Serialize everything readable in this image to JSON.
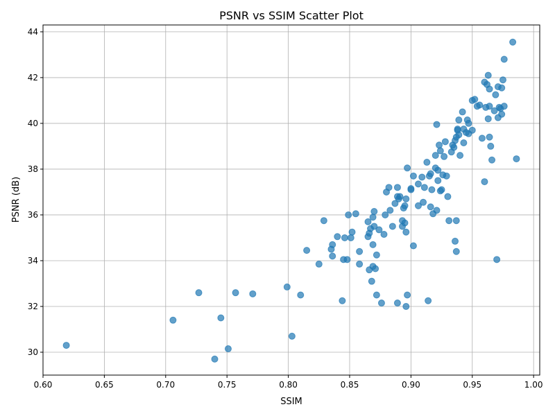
{
  "chart_data": {
    "type": "scatter",
    "title": "PSNR vs SSIM Scatter Plot",
    "xlabel": "SSIM",
    "ylabel": "PSNR (dB)",
    "xlim": [
      0.6,
      1.005
    ],
    "ylim": [
      29.0,
      44.3
    ],
    "xticks": [
      "0.60",
      "0.65",
      "0.70",
      "0.75",
      "0.80",
      "0.85",
      "0.90",
      "0.95",
      "1.00"
    ],
    "yticks": [
      "30",
      "32",
      "34",
      "36",
      "38",
      "40",
      "42",
      "44"
    ],
    "grid": true,
    "marker_color": "#1f77b4",
    "marker_alpha": 0.7,
    "points": [
      [
        0.619,
        30.3
      ],
      [
        0.706,
        31.4
      ],
      [
        0.727,
        32.6
      ],
      [
        0.74,
        29.7
      ],
      [
        0.745,
        31.5
      ],
      [
        0.751,
        30.15
      ],
      [
        0.757,
        32.6
      ],
      [
        0.771,
        32.55
      ],
      [
        0.799,
        32.85
      ],
      [
        0.803,
        30.7
      ],
      [
        0.81,
        32.5
      ],
      [
        0.815,
        34.45
      ],
      [
        0.825,
        33.85
      ],
      [
        0.829,
        35.75
      ],
      [
        0.835,
        34.5
      ],
      [
        0.836,
        34.7
      ],
      [
        0.836,
        34.2
      ],
      [
        0.84,
        35.05
      ],
      [
        0.844,
        32.25
      ],
      [
        0.845,
        34.05
      ],
      [
        0.846,
        35.0
      ],
      [
        0.848,
        34.05
      ],
      [
        0.849,
        36.0
      ],
      [
        0.851,
        35.0
      ],
      [
        0.852,
        35.25
      ],
      [
        0.855,
        36.05
      ],
      [
        0.858,
        33.85
      ],
      [
        0.858,
        34.4
      ],
      [
        0.865,
        35.05
      ],
      [
        0.865,
        35.7
      ],
      [
        0.866,
        35.2
      ],
      [
        0.867,
        35.4
      ],
      [
        0.866,
        33.6
      ],
      [
        0.868,
        33.1
      ],
      [
        0.869,
        34.7
      ],
      [
        0.869,
        35.9
      ],
      [
        0.869,
        33.75
      ],
      [
        0.87,
        36.15
      ],
      [
        0.87,
        35.5
      ],
      [
        0.871,
        33.65
      ],
      [
        0.872,
        34.25
      ],
      [
        0.872,
        32.5
      ],
      [
        0.874,
        35.35
      ],
      [
        0.876,
        32.15
      ],
      [
        0.878,
        35.15
      ],
      [
        0.879,
        36.0
      ],
      [
        0.88,
        37.0
      ],
      [
        0.882,
        37.2
      ],
      [
        0.883,
        36.2
      ],
      [
        0.885,
        35.5
      ],
      [
        0.887,
        36.5
      ],
      [
        0.889,
        37.2
      ],
      [
        0.889,
        36.8
      ],
      [
        0.889,
        32.15
      ],
      [
        0.89,
        36.7
      ],
      [
        0.891,
        36.8
      ],
      [
        0.893,
        35.75
      ],
      [
        0.893,
        35.5
      ],
      [
        0.894,
        36.3
      ],
      [
        0.895,
        35.65
      ],
      [
        0.895,
        36.4
      ],
      [
        0.896,
        36.7
      ],
      [
        0.896,
        35.25
      ],
      [
        0.896,
        32.0
      ],
      [
        0.897,
        38.05
      ],
      [
        0.897,
        32.5
      ],
      [
        0.9,
        37.1
      ],
      [
        0.9,
        37.15
      ],
      [
        0.902,
        37.7
      ],
      [
        0.902,
        34.65
      ],
      [
        0.906,
        37.35
      ],
      [
        0.906,
        36.4
      ],
      [
        0.909,
        37.65
      ],
      [
        0.91,
        36.55
      ],
      [
        0.911,
        37.2
      ],
      [
        0.913,
        38.3
      ],
      [
        0.914,
        32.25
      ],
      [
        0.915,
        37.7
      ],
      [
        0.916,
        37.8
      ],
      [
        0.916,
        36.35
      ],
      [
        0.917,
        37.1
      ],
      [
        0.918,
        36.05
      ],
      [
        0.92,
        38.6
      ],
      [
        0.92,
        38.05
      ],
      [
        0.921,
        39.95
      ],
      [
        0.921,
        36.2
      ],
      [
        0.922,
        37.95
      ],
      [
        0.922,
        37.5
      ],
      [
        0.923,
        39.05
      ],
      [
        0.924,
        38.8
      ],
      [
        0.924,
        37.05
      ],
      [
        0.925,
        37.1
      ],
      [
        0.926,
        37.75
      ],
      [
        0.927,
        38.55
      ],
      [
        0.928,
        39.2
      ],
      [
        0.929,
        37.7
      ],
      [
        0.93,
        36.8
      ],
      [
        0.931,
        35.75
      ],
      [
        0.933,
        38.75
      ],
      [
        0.934,
        39.05
      ],
      [
        0.935,
        38.95
      ],
      [
        0.936,
        39.25
      ],
      [
        0.936,
        34.85
      ],
      [
        0.937,
        39.4
      ],
      [
        0.937,
        35.75
      ],
      [
        0.937,
        34.4
      ],
      [
        0.938,
        39.7
      ],
      [
        0.938,
        39.75
      ],
      [
        0.939,
        39.5
      ],
      [
        0.939,
        40.15
      ],
      [
        0.94,
        38.6
      ],
      [
        0.942,
        40.5
      ],
      [
        0.943,
        39.15
      ],
      [
        0.943,
        39.75
      ],
      [
        0.945,
        39.6
      ],
      [
        0.946,
        40.15
      ],
      [
        0.947,
        39.55
      ],
      [
        0.947,
        40.0
      ],
      [
        0.95,
        41.0
      ],
      [
        0.95,
        39.7
      ],
      [
        0.952,
        41.05
      ],
      [
        0.954,
        40.75
      ],
      [
        0.956,
        40.8
      ],
      [
        0.958,
        39.35
      ],
      [
        0.96,
        41.8
      ],
      [
        0.96,
        37.45
      ],
      [
        0.961,
        40.7
      ],
      [
        0.962,
        41.7
      ],
      [
        0.963,
        42.1
      ],
      [
        0.963,
        40.2
      ],
      [
        0.964,
        41.5
      ],
      [
        0.964,
        40.75
      ],
      [
        0.964,
        39.4
      ],
      [
        0.965,
        39.0
      ],
      [
        0.966,
        38.4
      ],
      [
        0.968,
        40.55
      ],
      [
        0.969,
        41.25
      ],
      [
        0.97,
        34.05
      ],
      [
        0.971,
        41.6
      ],
      [
        0.971,
        40.25
      ],
      [
        0.972,
        40.7
      ],
      [
        0.973,
        40.65
      ],
      [
        0.974,
        41.55
      ],
      [
        0.974,
        40.4
      ],
      [
        0.975,
        41.9
      ],
      [
        0.976,
        42.8
      ],
      [
        0.976,
        40.75
      ],
      [
        0.983,
        43.55
      ],
      [
        0.986,
        38.45
      ]
    ]
  }
}
